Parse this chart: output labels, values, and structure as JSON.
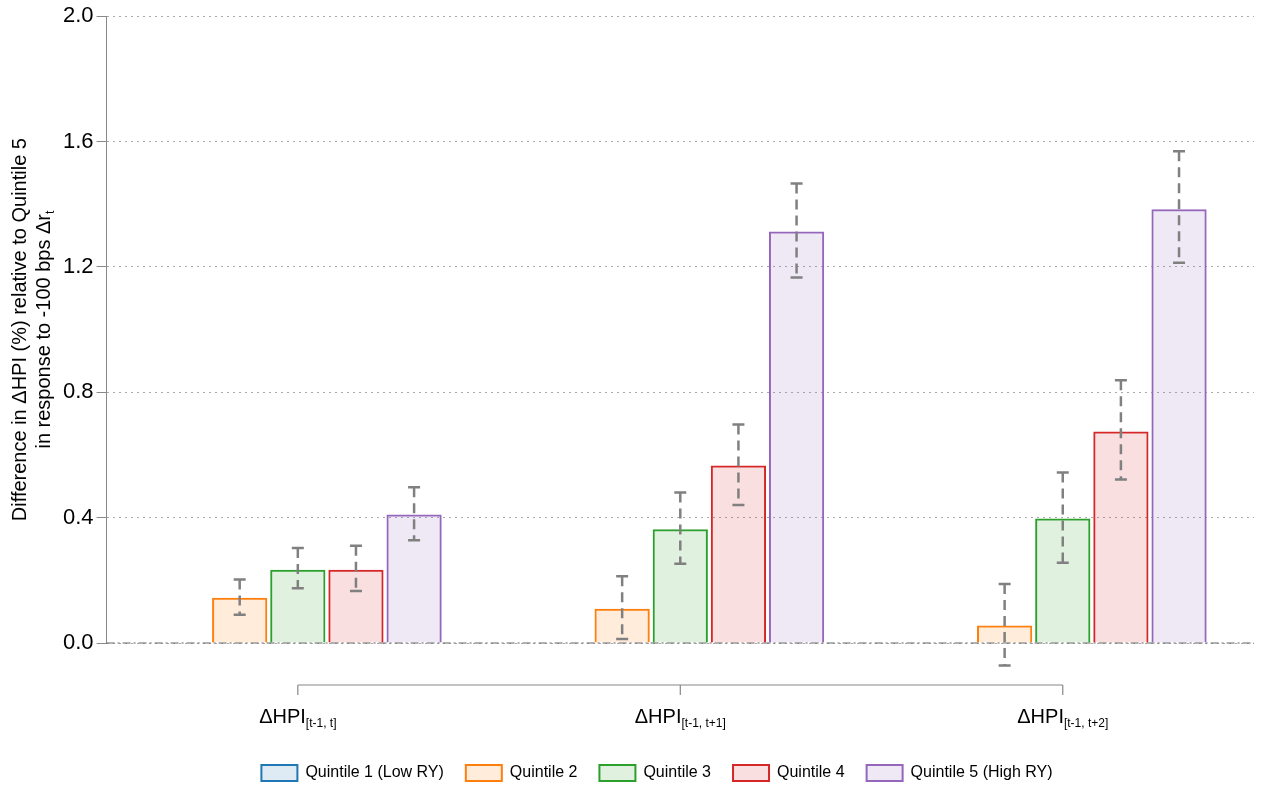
{
  "chart_data": {
    "type": "bar",
    "ylabel": "Difference in ΔHPI (%) relative to Quintile 5\nin response to -100 bps Δr$_{t}$",
    "categories": [
      "ΔHPI$_{[t-1, t]}$",
      "ΔHPI$_{[t-1, t+1]}$",
      "ΔHPI$_{[t-1, t+2]}$"
    ],
    "series": [
      {
        "name": "Quintile 1 (Low RY)",
        "color": "#1f77b4",
        "values": [
          0,
          0,
          0
        ],
        "errors": [
          null,
          null,
          null
        ]
      },
      {
        "name": "Quintile 2",
        "color": "#ff7f0e",
        "values": [
          0.144,
          0.109,
          0.056
        ],
        "errors": [
          [
            0.09,
            0.203
          ],
          [
            0.013,
            0.213
          ],
          [
            -0.072,
            0.188
          ]
        ]
      },
      {
        "name": "Quintile 3",
        "color": "#2ca02c",
        "values": [
          0.234,
          0.363,
          0.397
        ],
        "errors": [
          [
            0.175,
            0.303
          ],
          [
            0.253,
            0.48
          ],
          [
            0.256,
            0.544
          ]
        ]
      },
      {
        "name": "Quintile 4",
        "color": "#d62728",
        "values": [
          0.234,
          0.566,
          0.675
        ],
        "errors": [
          [
            0.166,
            0.31
          ],
          [
            0.44,
            0.697
          ],
          [
            0.522,
            0.838
          ]
        ]
      },
      {
        "name": "Quintile 5 (High RY)",
        "color": "#9467bd",
        "values": [
          0.41,
          1.313,
          1.384
        ],
        "errors": [
          [
            0.328,
            0.497
          ],
          [
            1.166,
            1.466
          ],
          [
            1.213,
            1.569
          ]
        ]
      }
    ],
    "ylim": [
      0,
      2
    ],
    "yticks": [
      {
        "value": 0,
        "label": "0.0"
      },
      {
        "value": 0.4,
        "label": "0.4"
      },
      {
        "value": 0.8,
        "label": "0.8"
      },
      {
        "value": 1.2,
        "label": "1.2"
      },
      {
        "value": 1.6,
        "label": "1.6"
      },
      {
        "value": 2,
        "label": "2.0"
      }
    ],
    "grid": "y",
    "legend": "bottom",
    "ref_lines": [
      {
        "axis": "y",
        "value": 0,
        "line_style": "dashed",
        "color": "#666666"
      }
    ]
  }
}
